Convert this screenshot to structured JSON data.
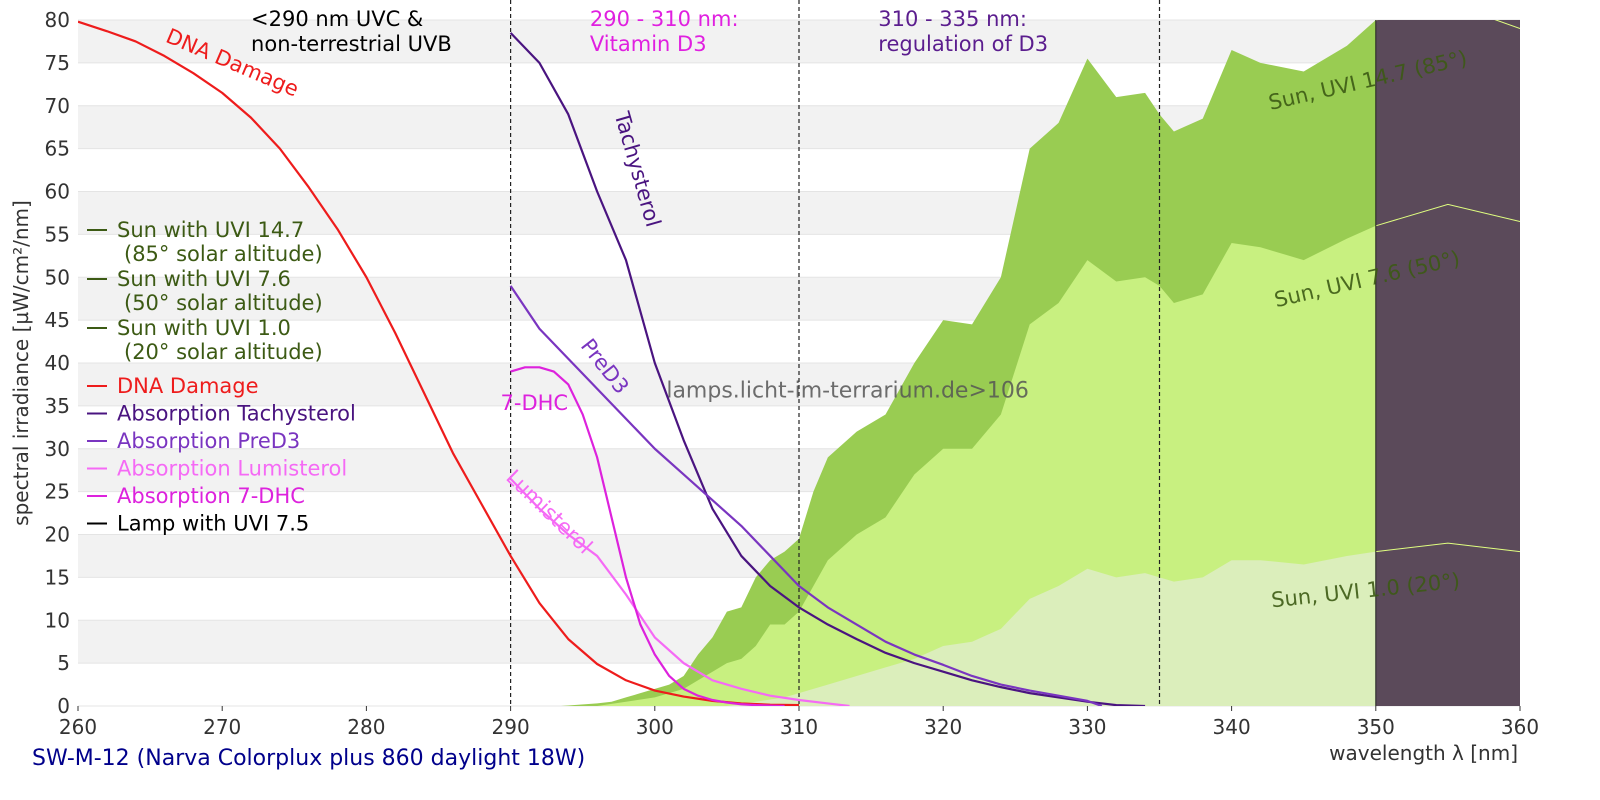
{
  "caption": "SW-M-12 (Narva Colorplux plus 860 daylight 18W)",
  "watermark": "lamps.licht-im-terrarium.de>106",
  "chart_data": {
    "type": "area",
    "xlabel": "wavelength λ [nm]",
    "ylabel": "spectral irradiance [µW/cm²/nm]",
    "xlim": [
      260,
      360
    ],
    "ylim": [
      0,
      80
    ],
    "xticks": [
      260,
      270,
      280,
      290,
      300,
      310,
      320,
      330,
      340,
      350,
      360
    ],
    "yticks": [
      0,
      5,
      10,
      15,
      20,
      25,
      30,
      35,
      40,
      45,
      50,
      55,
      60,
      65,
      70,
      75,
      80
    ],
    "grid": "horizontal alternating bands",
    "legend_position": "left",
    "region_dividers": [
      290,
      310,
      335
    ],
    "region_labels": [
      {
        "lines": [
          "<290 nm UVC &",
          "non-terrestrial UVB"
        ],
        "color": "#000000",
        "x": 272
      },
      {
        "lines": [
          "290 - 310 nm:",
          "Vitamin D3"
        ],
        "color": "#e020e0",
        "x": 295.5
      },
      {
        "lines": [
          "310 - 335 nm:",
          "regulation of D3"
        ],
        "color": "#5b1d8e",
        "x": 315.5
      }
    ],
    "lamp_region": {
      "x_from": 350,
      "x_to": 360,
      "color": "#5b4a5a"
    },
    "sun_areas": [
      {
        "name": "Sun with UVI 14.7",
        "sub": "(85° solar altitude)",
        "curve_label": "Sun, UVI 14.7 (85°)",
        "color": "#99cc52",
        "x": [
          293.5,
          296,
          297,
          298,
          299,
          300,
          301,
          302,
          303,
          304,
          305,
          306,
          307,
          308,
          309,
          310,
          311,
          312,
          314,
          316,
          318,
          320,
          322,
          324,
          326,
          328,
          330,
          332,
          334,
          335,
          336,
          338,
          340,
          342,
          345,
          348,
          350,
          355,
          360
        ],
        "y": [
          0,
          0.3,
          0.5,
          1,
          1.5,
          2,
          2.5,
          3.5,
          6,
          8,
          11,
          11.5,
          15,
          17,
          18,
          19.5,
          25,
          29,
          32,
          34,
          40,
          45,
          44.5,
          50,
          65,
          68,
          75.5,
          71,
          71.5,
          69,
          67,
          68.5,
          76.5,
          75,
          74,
          77,
          80,
          82,
          79
        ]
      },
      {
        "name": "Sun with UVI 7.6",
        "sub": "(50° solar altitude)",
        "curve_label": "Sun, UVI 7.6 (50°)",
        "color": "#c8f080",
        "x": [
          296,
          298,
          300,
          301,
          302,
          303,
          304,
          305,
          306,
          307,
          308,
          309,
          310,
          311,
          312,
          314,
          316,
          318,
          320,
          322,
          324,
          326,
          328,
          330,
          332,
          334,
          335,
          336,
          338,
          340,
          342,
          345,
          348,
          350,
          355,
          360
        ],
        "y": [
          0,
          0.5,
          1,
          1.5,
          2,
          3,
          4,
          5,
          5.5,
          7,
          9.5,
          9.5,
          11,
          14,
          17,
          20,
          22,
          27,
          30,
          30,
          34,
          44.5,
          47,
          52,
          49.5,
          50,
          49,
          47,
          48,
          54,
          53.5,
          52,
          54.5,
          56,
          58.5,
          56.5
        ]
      },
      {
        "name": "Sun with UVI 1.0",
        "sub": "(20° solar altitude)",
        "curve_label": "Sun, UVI 1.0 (20°)",
        "color": "#dbeebb",
        "x": [
          305,
          307,
          309,
          310,
          312,
          314,
          316,
          318,
          320,
          322,
          324,
          326,
          328,
          330,
          332,
          334,
          336,
          338,
          340,
          342,
          345,
          348,
          350,
          355,
          360
        ],
        "y": [
          0,
          0.5,
          1,
          1.5,
          2.5,
          3.5,
          4.5,
          5.5,
          7,
          7.5,
          9,
          12.5,
          14,
          16,
          15,
          15.5,
          14.5,
          15,
          17,
          17,
          16.5,
          17.5,
          18,
          19,
          18
        ]
      }
    ],
    "series": [
      {
        "name": "DNA Damage",
        "color": "#ee1c1c",
        "x": [
          260,
          262,
          264,
          266,
          268,
          270,
          272,
          274,
          276,
          278,
          280,
          282,
          284,
          286,
          288,
          290,
          292,
          294,
          296,
          298,
          300,
          302,
          304,
          306,
          308,
          310
        ],
        "y": [
          79.8,
          78.7,
          77.5,
          75.8,
          73.8,
          71.5,
          68.6,
          65,
          60.5,
          55.6,
          50,
          43.5,
          36.5,
          29.5,
          23.5,
          17.5,
          12,
          7.8,
          4.9,
          3,
          1.8,
          1.1,
          0.6,
          0.3,
          0.15,
          0.1
        ]
      },
      {
        "name": "Absorption Tachysterol",
        "color": "#4a1480",
        "x": [
          290,
          292,
          294,
          296,
          298,
          300,
          302,
          304,
          306,
          308,
          310,
          312,
          314,
          316,
          318,
          320,
          322,
          324,
          326,
          328,
          330,
          332,
          334
        ],
        "y": [
          78.5,
          75,
          69,
          60,
          52,
          40,
          31,
          23,
          17.5,
          14,
          11.5,
          9.5,
          7.8,
          6.2,
          5,
          4,
          3,
          2.2,
          1.5,
          1,
          0.5,
          0.1,
          0
        ]
      },
      {
        "name": "Absorption PreD3",
        "color": "#7a35c0",
        "x": [
          290,
          292,
          294,
          296,
          298,
          300,
          302,
          304,
          306,
          308,
          310,
          312,
          314,
          316,
          318,
          320,
          322,
          324,
          326,
          328,
          330,
          331
        ],
        "y": [
          49,
          44,
          40.5,
          37,
          33.5,
          30,
          27,
          24,
          21,
          17.5,
          14,
          11.5,
          9.5,
          7.5,
          6,
          4.8,
          3.5,
          2.5,
          1.8,
          1.2,
          0.6,
          0
        ]
      },
      {
        "name": "Absorption Lumisterol",
        "color": "#f56af5",
        "x": [
          290,
          292,
          294,
          296,
          298,
          300,
          302,
          304,
          306,
          308,
          310,
          312,
          313.5
        ],
        "y": [
          26.5,
          23,
          20,
          17.5,
          13,
          8,
          5,
          3,
          2,
          1.2,
          0.7,
          0.3,
          0
        ]
      },
      {
        "name": "Absorption 7-DHC",
        "color": "#dd22dd",
        "x": [
          290,
          291,
          292,
          293,
          294,
          295,
          296,
          297,
          298,
          299,
          300,
          301,
          302,
          303,
          304,
          305,
          306,
          307,
          308,
          309
        ],
        "y": [
          39,
          39.5,
          39.5,
          39,
          37.5,
          34,
          29,
          22,
          15,
          9.5,
          6,
          3.5,
          2,
          1.2,
          0.7,
          0.4,
          0.2,
          0.1,
          0.05,
          0
        ]
      },
      {
        "name": "Lamp with UVI 7.5",
        "color": "#000000",
        "x": [],
        "y": []
      }
    ],
    "annotations": [
      {
        "text": "DNA Damage",
        "color": "#ee1c1c"
      },
      {
        "text": "Tachysterol",
        "color": "#4a1480"
      },
      {
        "text": "PreD3",
        "color": "#7a35c0"
      },
      {
        "text": "7-DHC",
        "color": "#dd22dd"
      },
      {
        "text": "Lumisterol",
        "color": "#f56af5"
      }
    ],
    "legend_colors": {
      "sun": "#3c5a14"
    }
  }
}
